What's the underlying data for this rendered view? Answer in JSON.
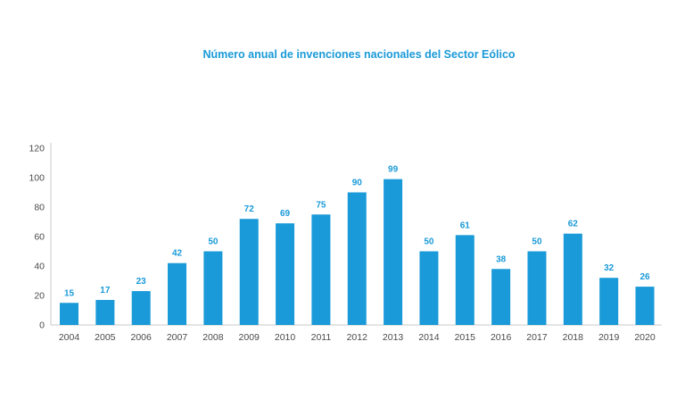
{
  "colors": {
    "bar": "#1a9ad8",
    "title": "#1a9ad8",
    "axis": "#c8c8c8",
    "tick_text": "#4a4a4a"
  },
  "chart_data": {
    "type": "bar",
    "title": "Número anual de invenciones nacionales del Sector Eólico",
    "xlabel": "",
    "ylabel": "",
    "ylim": [
      0,
      120
    ],
    "yticks": [
      0,
      20,
      40,
      60,
      80,
      100,
      120
    ],
    "grid": false,
    "categories": [
      "2004",
      "2005",
      "2006",
      "2007",
      "2008",
      "2009",
      "2010",
      "2011",
      "2012",
      "2013",
      "2014",
      "2015",
      "2016",
      "2017",
      "2018",
      "2019",
      "2020"
    ],
    "values": [
      15,
      17,
      23,
      42,
      50,
      72,
      69,
      75,
      90,
      99,
      50,
      61,
      38,
      50,
      62,
      32,
      26
    ]
  }
}
